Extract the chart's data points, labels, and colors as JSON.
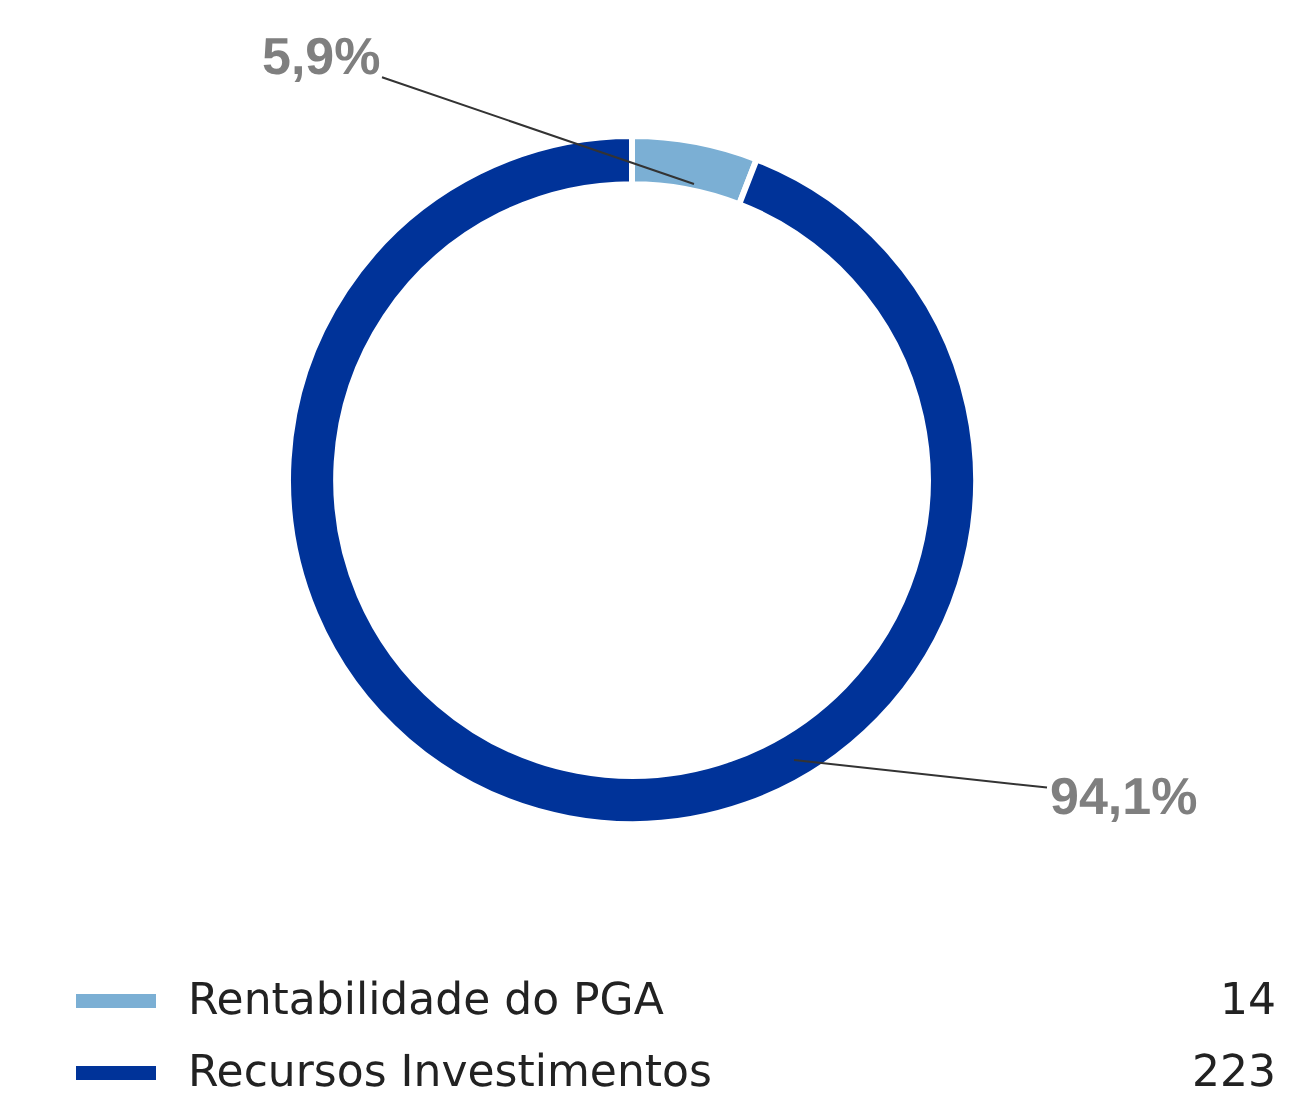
{
  "chart_data": {
    "type": "donut",
    "categories": [
      "Rentabilidade do PGA",
      "Recursos Investimentos"
    ],
    "values": [
      5.9,
      94.1
    ],
    "annotations": [
      "14",
      "223"
    ],
    "colors": [
      "#7bafd4",
      "#003399"
    ],
    "value_labels": [
      "5,9%",
      "94,1%"
    ],
    "legend": "bottom"
  }
}
